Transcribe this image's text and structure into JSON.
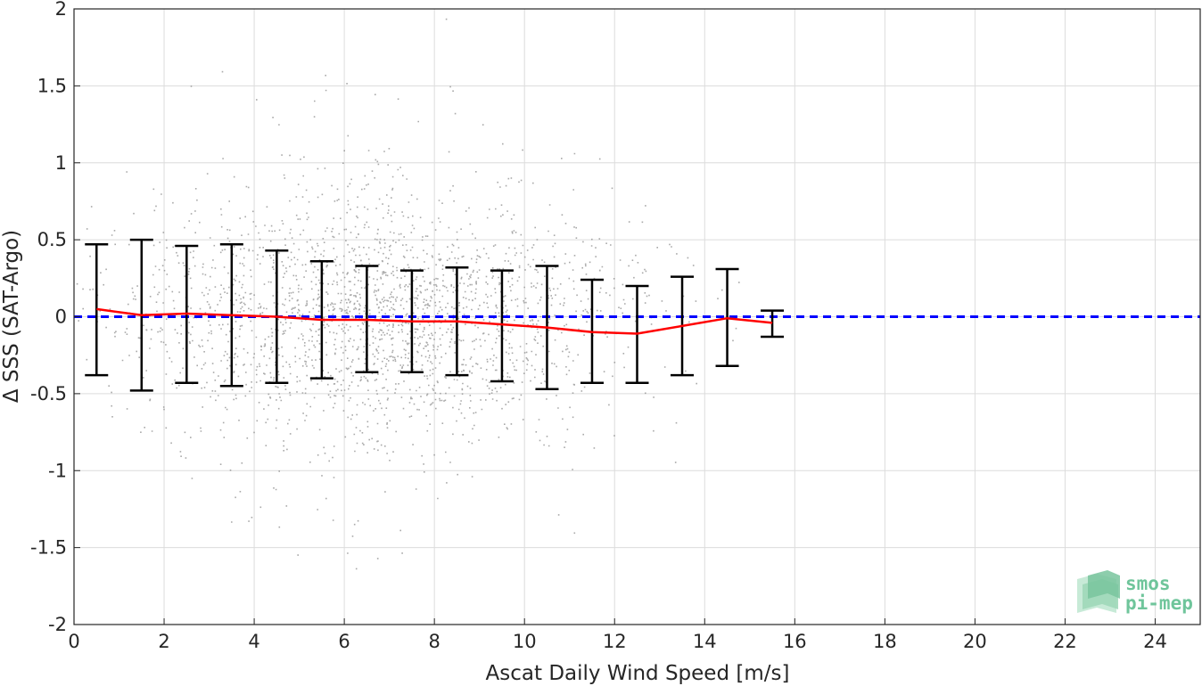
{
  "chart_data": {
    "type": "scatter",
    "xlabel": "Ascat Daily Wind Speed [m/s]",
    "ylabel": "Δ SSS (SAT-Argo)",
    "xlim": [
      0,
      25
    ],
    "ylim": [
      -2,
      2
    ],
    "xticks": [
      "0",
      "2",
      "4",
      "6",
      "8",
      "10",
      "12",
      "14",
      "16",
      "18",
      "20",
      "22",
      "24"
    ],
    "yticks": [
      "-2",
      "-1.5",
      "-1",
      "-0.5",
      "0",
      "0.5",
      "1",
      "1.5",
      "2"
    ],
    "grid": true,
    "scatter_color": "#8c8c8c",
    "scatter_description_points": "dense cloud centered near x=6-7, y=0; spreads from x=0 to ~16",
    "binned_mean": {
      "x": [
        0.5,
        1.5,
        2.5,
        3.5,
        4.5,
        5.5,
        6.5,
        7.5,
        8.5,
        9.5,
        10.5,
        11.5,
        12.5,
        13.5,
        14.5,
        15.5
      ],
      "mean": [
        0.05,
        0.01,
        0.02,
        0.01,
        0.0,
        -0.02,
        -0.02,
        -0.03,
        -0.03,
        -0.05,
        -0.07,
        -0.1,
        -0.11,
        -0.06,
        -0.01,
        -0.04
      ],
      "upper": [
        0.47,
        0.5,
        0.46,
        0.47,
        0.43,
        0.36,
        0.33,
        0.3,
        0.32,
        0.3,
        0.33,
        0.24,
        0.2,
        0.26,
        0.31,
        0.04
      ],
      "lower": [
        -0.38,
        -0.48,
        -0.43,
        -0.45,
        -0.43,
        -0.4,
        -0.36,
        -0.36,
        -0.38,
        -0.42,
        -0.47,
        -0.43,
        -0.43,
        -0.38,
        -0.32,
        -0.13
      ],
      "line_color": "#ff0000",
      "errorbar_color": "#000000"
    },
    "reference_line": {
      "y": 0,
      "color": "#0000ff",
      "style": "dashed"
    }
  },
  "logo": {
    "line1": "smos",
    "line2": "pi-mep"
  }
}
